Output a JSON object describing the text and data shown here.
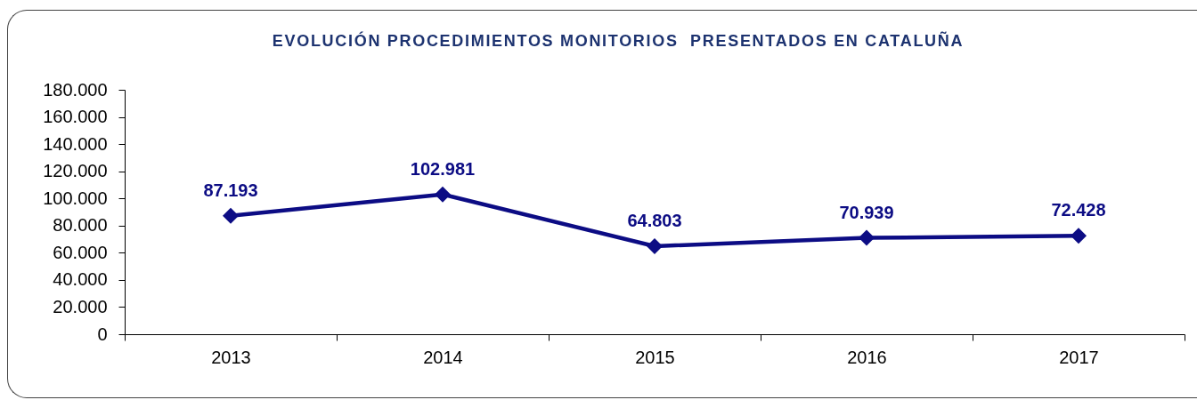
{
  "chart_data": {
    "type": "line",
    "title": "EVOLUCIÓN PROCEDIMIENTOS MONITORIOS  PRESENTADOS EN CATALUÑA",
    "categories": [
      "2013",
      "2014",
      "2015",
      "2016",
      "2017"
    ],
    "values": [
      87193,
      102981,
      64803,
      70939,
      72428
    ],
    "value_labels": [
      "87.193",
      "102.981",
      "64.803",
      "70.939",
      "72.428"
    ],
    "color": "#0c0c84",
    "marker": "diamond",
    "line_style": "solid",
    "ylim": [
      0,
      180000
    ],
    "yticks": [
      0,
      {
        "value": 20000,
        "label": "20.000"
      },
      {
        "value": 40000,
        "label": "40.000"
      },
      {
        "value": 60000,
        "label": "60.000"
      },
      {
        "value": 80000,
        "label": "80.000"
      },
      {
        "value": 100000,
        "label": "100.000"
      },
      {
        "value": 120000,
        "label": "120.000"
      },
      {
        "value": 140000,
        "label": "140.000"
      },
      {
        "value": 160000,
        "label": "160.000"
      },
      {
        "value": 180000,
        "label": "180.000"
      }
    ]
  }
}
